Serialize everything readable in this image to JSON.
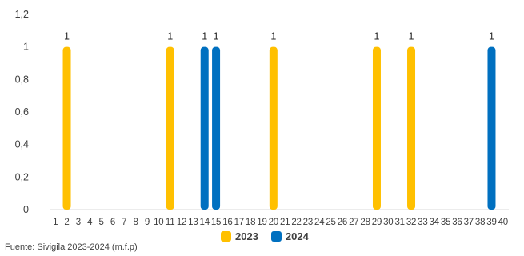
{
  "chart_data": {
    "type": "bar",
    "categories": [
      "1",
      "2",
      "3",
      "4",
      "5",
      "6",
      "7",
      "8",
      "9",
      "10",
      "11",
      "12",
      "13",
      "14",
      "15",
      "16",
      "17",
      "18",
      "19",
      "20",
      "21",
      "22",
      "23",
      "24",
      "25",
      "26",
      "27",
      "28",
      "29",
      "30",
      "31",
      "32",
      "33",
      "34",
      "35",
      "36",
      "37",
      "38",
      "39",
      "40"
    ],
    "series": [
      {
        "name": "2023",
        "color": "#FFC000",
        "values": [
          0,
          1,
          0,
          0,
          0,
          0,
          0,
          0,
          0,
          0,
          1,
          0,
          0,
          0,
          0,
          0,
          0,
          0,
          0,
          1,
          0,
          0,
          0,
          0,
          0,
          0,
          0,
          0,
          1,
          0,
          0,
          1,
          0,
          0,
          0,
          0,
          0,
          0,
          0,
          0
        ]
      },
      {
        "name": "2024",
        "color": "#0070C0",
        "values": [
          0,
          0,
          0,
          0,
          0,
          0,
          0,
          0,
          0,
          0,
          0,
          0,
          0,
          1,
          1,
          0,
          0,
          0,
          0,
          0,
          0,
          0,
          0,
          0,
          0,
          0,
          0,
          0,
          0,
          0,
          0,
          0,
          0,
          0,
          0,
          0,
          0,
          0,
          1,
          0
        ]
      }
    ],
    "data_labels": "1",
    "ylim": [
      0,
      1.2
    ],
    "yticks": [
      "0",
      "0,2",
      "0,4",
      "0,6",
      "0,8",
      "1",
      "1,2"
    ],
    "grid": false,
    "legend_position": "bottom",
    "title": "",
    "xlabel": "",
    "ylabel": ""
  },
  "source_note": "Fuente: Sivigila 2023-2024 (m.f.p)"
}
